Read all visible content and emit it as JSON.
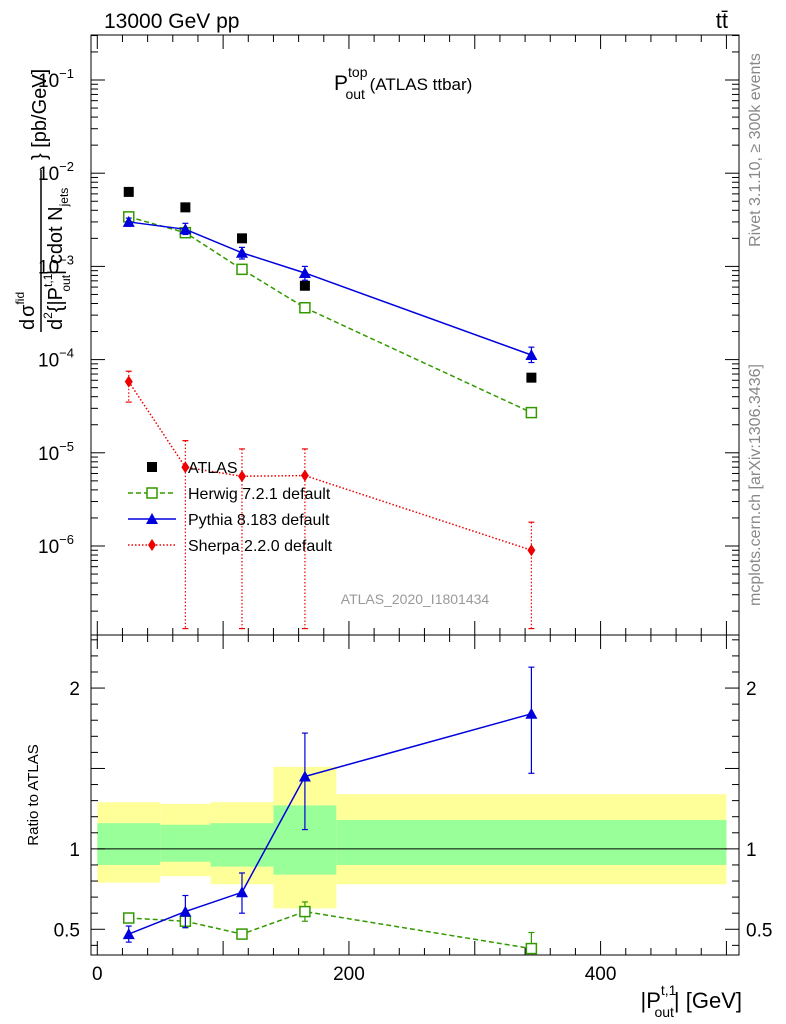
{
  "header": {
    "left": "13000 GeV pp",
    "right": "tt̄",
    "side_top": "Rivet 3.1.10, ≥ 300k events",
    "side_bottom": "mcplots.cern.ch [arXiv:1306.3436]"
  },
  "colors": {
    "atlas": "#000000",
    "herwig": "#339900",
    "pythia": "#0000dd",
    "sherpa": "#ee0000",
    "band_outer": "#ffff99",
    "band_inner": "#99ff99"
  },
  "chart_data": [
    {
      "type": "scatter",
      "name": "main",
      "title": {
        "base": "P",
        "sup": "top",
        "sub": "out",
        "suffix": " (ATLAS ttbar)"
      },
      "analysis_tag": "ATLAS_2020_I1801434",
      "ylabel": "d σ^{fid} / d^{2} {|P^{t,1}_{out}| cdot N_{jets}} [pb/GeV]",
      "ylabel_parts": {
        "d1": "d",
        "sigma": "σ",
        "fid": "fid",
        "d2": "d",
        "two": "2",
        "open": "{|P",
        "t1": "t,1",
        "out": "out",
        "mid": "| cdot N",
        "jets": "jets",
        "close": "} [pb/GeV]"
      },
      "yscale": "log",
      "ylim": [
        1.3e-07,
        0.3
      ],
      "y_ticks": [
        {
          "value": 1e-06,
          "base": "10",
          "exp": "−6"
        },
        {
          "value": 1e-05,
          "base": "10",
          "exp": "−5"
        },
        {
          "value": 0.0001,
          "base": "10",
          "exp": "−4"
        },
        {
          "value": 0.001,
          "base": "10",
          "exp": "−3"
        },
        {
          "value": 0.01,
          "base": "10",
          "exp": "−2"
        },
        {
          "value": 0.1,
          "base": "10",
          "exp": "−1"
        }
      ],
      "xlim": [
        -5,
        510
      ],
      "x": [
        25,
        70,
        115,
        165,
        345
      ],
      "series": [
        {
          "name": "ATLAS",
          "legend": "ATLAS",
          "marker": "square-filled",
          "values": [
            0.0063,
            0.0043,
            0.002,
            0.00062,
            6.4e-05
          ]
        },
        {
          "name": "Herwig",
          "legend": "Herwig 7.2.1 default",
          "marker": "square-open",
          "line": "dashed",
          "values": [
            0.0034,
            0.0023,
            0.00093,
            0.00036,
            2.7e-05
          ],
          "err_low": [
            0.0032,
            0.0022,
            0.00088,
            0.00034,
            2.5e-05
          ],
          "err_high": [
            0.0036,
            0.0024,
            0.00098,
            0.00038,
            2.9e-05
          ]
        },
        {
          "name": "Pythia",
          "legend": "Pythia 8.183 default",
          "marker": "triangle-filled",
          "line": "solid",
          "values": [
            0.003,
            0.0025,
            0.0014,
            0.00085,
            0.000112
          ],
          "err_low": [
            0.0027,
            0.0022,
            0.0012,
            0.00071,
            9.3e-05
          ],
          "err_high": [
            0.0033,
            0.0029,
            0.0016,
            0.001,
            0.000136
          ]
        },
        {
          "name": "Sherpa",
          "legend": "Sherpa 2.2.0 default",
          "marker": "diamond-filled",
          "line": "dotted",
          "values": [
            5.8e-05,
            7e-06,
            5.6e-06,
            5.7e-06,
            9e-07
          ],
          "err_low": [
            3.5e-05,
            1.3e-07,
            1.3e-07,
            1.3e-07,
            1.3e-07
          ],
          "err_high": [
            7.5e-05,
            1.35e-05,
            1.1e-05,
            1.1e-05,
            1.8e-06
          ]
        }
      ]
    },
    {
      "type": "line",
      "name": "ratio",
      "ylabel": "Ratio to ATLAS",
      "xlabel": "|P^{t,1}_{out}| [GeV]",
      "xlabel_parts": {
        "open": "|P",
        "sup": "t,1",
        "sub": "out",
        "close": "| [GeV]"
      },
      "ylim": [
        0.34,
        2.33
      ],
      "xlim": [
        -5,
        510
      ],
      "y_ticks": [
        {
          "value": 0.5,
          "label": "0.5"
        },
        {
          "value": 1,
          "label": "1"
        },
        {
          "value": 2,
          "label": "2"
        }
      ],
      "x_ticks": [
        {
          "value": 0,
          "label": "0"
        },
        {
          "value": 200,
          "label": "200"
        },
        {
          "value": 400,
          "label": "400"
        }
      ],
      "reference": 1,
      "bands": [
        {
          "x0": 0,
          "x1": 50,
          "outer": [
            0.79,
            1.29
          ],
          "inner": [
            0.9,
            1.16
          ]
        },
        {
          "x0": 50,
          "x1": 90,
          "outer": [
            0.83,
            1.28
          ],
          "inner": [
            0.92,
            1.15
          ]
        },
        {
          "x0": 90,
          "x1": 140,
          "outer": [
            0.78,
            1.29
          ],
          "inner": [
            0.89,
            1.16
          ]
        },
        {
          "x0": 140,
          "x1": 190,
          "outer": [
            0.63,
            1.51
          ],
          "inner": [
            0.84,
            1.27
          ]
        },
        {
          "x0": 190,
          "x1": 500,
          "outer": [
            0.78,
            1.34
          ],
          "inner": [
            0.9,
            1.18
          ]
        }
      ],
      "x": [
        25,
        70,
        115,
        165,
        345
      ],
      "series": [
        {
          "name": "Herwig",
          "values": [
            0.57,
            0.55,
            0.47,
            0.61,
            0.38
          ],
          "err_low": [
            0.54,
            0.51,
            0.44,
            0.55,
            0.35
          ],
          "err_high": [
            0.59,
            0.58,
            0.5,
            0.67,
            0.48
          ]
        },
        {
          "name": "Pythia",
          "values": [
            0.47,
            0.61,
            0.73,
            1.45,
            1.84
          ],
          "err_low": [
            0.42,
            0.51,
            0.6,
            1.12,
            1.47
          ],
          "err_high": [
            0.52,
            0.71,
            0.85,
            1.72,
            2.13
          ]
        }
      ]
    }
  ]
}
